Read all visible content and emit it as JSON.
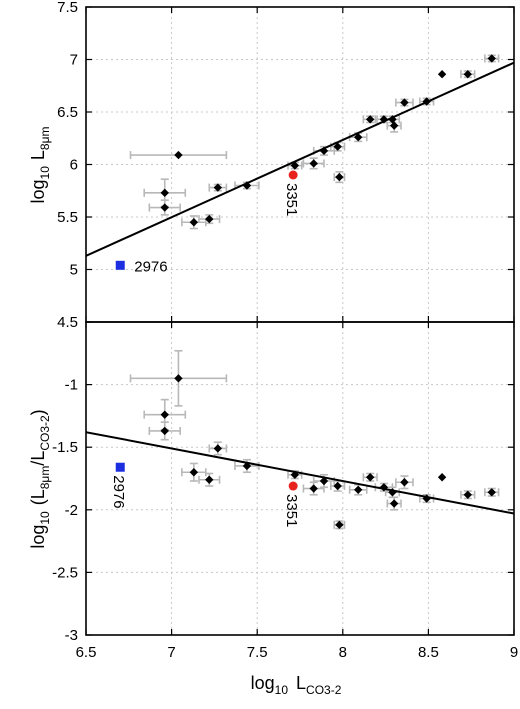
{
  "chart_data": [
    {
      "type": "scatter",
      "panel": "top",
      "ylabel_main": "log",
      "ylabel_sub": "10",
      "ylabel_var": "L",
      "ylabel_var_sub": "8μm",
      "ylim": [
        4.5,
        7.5
      ],
      "yticks": [
        "4.5",
        "5",
        "5.5",
        "6",
        "6.5",
        "7",
        "7.5"
      ],
      "xlim": [
        6.5,
        9
      ],
      "grid": true,
      "fit_line": {
        "x": [
          6.5,
          9
        ],
        "y": [
          5.13,
          6.97
        ]
      },
      "points": [
        {
          "x": 7.04,
          "y": 6.09,
          "xerr": 0.28,
          "yerr": 0.0
        },
        {
          "x": 6.96,
          "y": 5.73,
          "xerr": 0.12,
          "yerr": 0.13
        },
        {
          "x": 6.96,
          "y": 5.59,
          "xerr": 0.09,
          "yerr": 0.07
        },
        {
          "x": 7.13,
          "y": 5.45,
          "xerr": 0.07,
          "yerr": 0.06
        },
        {
          "x": 7.22,
          "y": 5.48,
          "xerr": 0.06,
          "yerr": 0.04
        },
        {
          "x": 7.27,
          "y": 5.78,
          "xerr": 0.05,
          "yerr": 0.03
        },
        {
          "x": 7.44,
          "y": 5.8,
          "xerr": 0.07,
          "yerr": 0.03
        },
        {
          "x": 7.72,
          "y": 5.99,
          "xerr": 0.04,
          "yerr": 0.03
        },
        {
          "x": 7.83,
          "y": 6.01,
          "xerr": 0.06,
          "yerr": 0.05
        },
        {
          "x": 7.89,
          "y": 6.13,
          "xerr": 0.06,
          "yerr": 0.04
        },
        {
          "x": 7.97,
          "y": 6.17,
          "xerr": 0.04,
          "yerr": 0.04
        },
        {
          "x": 7.98,
          "y": 5.88,
          "xerr": 0.03,
          "yerr": 0.05
        },
        {
          "x": 8.09,
          "y": 6.26,
          "xerr": 0.05,
          "yerr": 0.04
        },
        {
          "x": 8.16,
          "y": 6.43,
          "xerr": 0.04,
          "yerr": 0.03
        },
        {
          "x": 8.24,
          "y": 6.43,
          "xerr": 0.05,
          "yerr": 0.03
        },
        {
          "x": 8.29,
          "y": 6.43,
          "xerr": 0.04,
          "yerr": 0.03
        },
        {
          "x": 8.3,
          "y": 6.37,
          "xerr": 0.04,
          "yerr": 0.06
        },
        {
          "x": 8.36,
          "y": 6.59,
          "xerr": 0.05,
          "yerr": 0.03
        },
        {
          "x": 8.49,
          "y": 6.6,
          "xerr": 0.04,
          "yerr": 0.03
        },
        {
          "x": 8.58,
          "y": 6.86,
          "xerr": 0.0,
          "yerr": 0.0
        },
        {
          "x": 8.73,
          "y": 6.86,
          "xerr": 0.04,
          "yerr": 0.03
        },
        {
          "x": 8.87,
          "y": 7.01,
          "xerr": 0.04,
          "yerr": 0.03
        }
      ],
      "highlights": [
        {
          "label": "3351",
          "x": 7.71,
          "y": 5.9,
          "color": "#e8231e",
          "marker": "circle",
          "label_pos": "below"
        },
        {
          "label": "2976",
          "x": 6.7,
          "y": 5.04,
          "color": "#1c2fe0",
          "marker": "square",
          "label_pos": "right"
        }
      ]
    },
    {
      "type": "scatter",
      "panel": "bottom",
      "ylabel_main": "log",
      "ylabel_sub": "10",
      "ylabel_var": "(L",
      "ylabel_var_sub": "8μm",
      "ylabel_mid": "/L",
      "ylabel_mid_sub": "CO3-2",
      "ylabel_end": ")",
      "ylim": [
        -3,
        -0.5
      ],
      "yticks": [
        "-3",
        "-2.5",
        "-2",
        "-1.5",
        "-1"
      ],
      "xlim": [
        6.5,
        9
      ],
      "xticks": [
        "6.5",
        "7",
        "7.5",
        "8",
        "8.5",
        "9"
      ],
      "xlabel_main": "log",
      "xlabel_sub": "10",
      "xlabel_var": "L",
      "xlabel_var_sub": "CO3-2",
      "grid": true,
      "fit_line": {
        "x": [
          6.5,
          9
        ],
        "y": [
          -1.38,
          -2.03
        ]
      },
      "points": [
        {
          "x": 7.04,
          "y": -0.95,
          "xerr": 0.28,
          "yerr": 0.22
        },
        {
          "x": 6.96,
          "y": -1.24,
          "xerr": 0.12,
          "yerr": 0.12
        },
        {
          "x": 6.96,
          "y": -1.37,
          "xerr": 0.09,
          "yerr": 0.07
        },
        {
          "x": 7.13,
          "y": -1.7,
          "xerr": 0.07,
          "yerr": 0.07
        },
        {
          "x": 7.22,
          "y": -1.76,
          "xerr": 0.06,
          "yerr": 0.05
        },
        {
          "x": 7.27,
          "y": -1.51,
          "xerr": 0.05,
          "yerr": 0.05
        },
        {
          "x": 7.44,
          "y": -1.65,
          "xerr": 0.07,
          "yerr": 0.05
        },
        {
          "x": 7.72,
          "y": -1.72,
          "xerr": 0.04,
          "yerr": 0.03
        },
        {
          "x": 7.83,
          "y": -1.83,
          "xerr": 0.06,
          "yerr": 0.05
        },
        {
          "x": 7.89,
          "y": -1.77,
          "xerr": 0.06,
          "yerr": 0.05
        },
        {
          "x": 7.97,
          "y": -1.81,
          "xerr": 0.04,
          "yerr": 0.04
        },
        {
          "x": 7.98,
          "y": -2.12,
          "xerr": 0.03,
          "yerr": 0.03
        },
        {
          "x": 8.09,
          "y": -1.84,
          "xerr": 0.05,
          "yerr": 0.04
        },
        {
          "x": 8.16,
          "y": -1.74,
          "xerr": 0.04,
          "yerr": 0.03
        },
        {
          "x": 8.24,
          "y": -1.82,
          "xerr": 0.05,
          "yerr": 0.03
        },
        {
          "x": 8.29,
          "y": -1.86,
          "xerr": 0.04,
          "yerr": 0.04
        },
        {
          "x": 8.3,
          "y": -1.95,
          "xerr": 0.04,
          "yerr": 0.05
        },
        {
          "x": 8.36,
          "y": -1.78,
          "xerr": 0.05,
          "yerr": 0.05
        },
        {
          "x": 8.49,
          "y": -1.91,
          "xerr": 0.04,
          "yerr": 0.03
        },
        {
          "x": 8.58,
          "y": -1.74,
          "xerr": 0.0,
          "yerr": 0.0
        },
        {
          "x": 8.73,
          "y": -1.88,
          "xerr": 0.04,
          "yerr": 0.03
        },
        {
          "x": 8.87,
          "y": -1.86,
          "xerr": 0.04,
          "yerr": 0.03
        }
      ],
      "highlights": [
        {
          "label": "3351",
          "x": 7.71,
          "y": -1.81,
          "color": "#e8231e",
          "marker": "circle",
          "label_pos": "below"
        },
        {
          "label": "2976",
          "x": 6.7,
          "y": -1.66,
          "color": "#1c2fe0",
          "marker": "square",
          "label_pos": "below"
        }
      ]
    }
  ]
}
